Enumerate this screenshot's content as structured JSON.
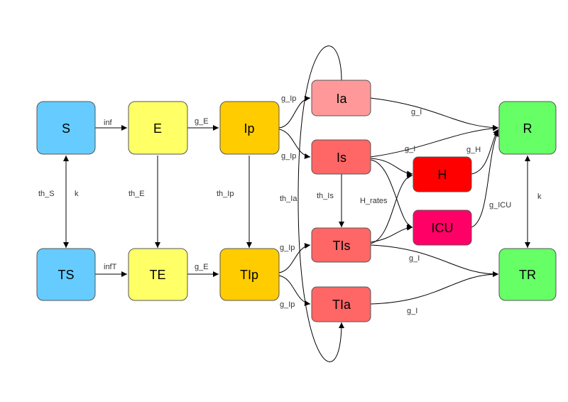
{
  "nodes": {
    "S": {
      "label": "S",
      "color": "#66ccff"
    },
    "E": {
      "label": "E",
      "color": "#ffff66"
    },
    "Ip": {
      "label": "Ip",
      "color": "#ffcc00"
    },
    "Ia": {
      "label": "Ia",
      "color": "#ff9999"
    },
    "Is": {
      "label": "Is",
      "color": "#ff6666"
    },
    "H": {
      "label": "H",
      "color": "#ff0000"
    },
    "ICU": {
      "label": "ICU",
      "color": "#ff0066"
    },
    "R": {
      "label": "R",
      "color": "#66ff66"
    },
    "TS": {
      "label": "TS",
      "color": "#66ccff"
    },
    "TE": {
      "label": "TE",
      "color": "#ffff66"
    },
    "TIp": {
      "label": "TIp",
      "color": "#ffcc00"
    },
    "TIs": {
      "label": "TIs",
      "color": "#ff6666"
    },
    "TIa": {
      "label": "TIa",
      "color": "#ff6666"
    },
    "TR": {
      "label": "TR",
      "color": "#66ff66"
    }
  },
  "edge_labels": {
    "inf": "inf",
    "g_E_top": "g_E",
    "g_Ip_Ia": "g_Ip",
    "g_Ip_Is": "g_Ip",
    "g_I_Ia": "g_I",
    "g_I_Is": "g_I",
    "g_H": "g_H",
    "g_ICU": "g_ICU",
    "H_rates": "H_rates",
    "th_S": "th_S",
    "k_left": "k",
    "th_E": "th_E",
    "th_Ip": "th_Ip",
    "th_Ia": "th_Ia",
    "th_Is": "th_Is",
    "k_right": "k",
    "infT": "infT",
    "g_E_bottom": "g_E",
    "g_Ip_TIs": "g_Ip",
    "g_Ip_TIa": "g_Ip",
    "g_I_TIs": "g_I",
    "g_I_TIa": "g_I"
  }
}
